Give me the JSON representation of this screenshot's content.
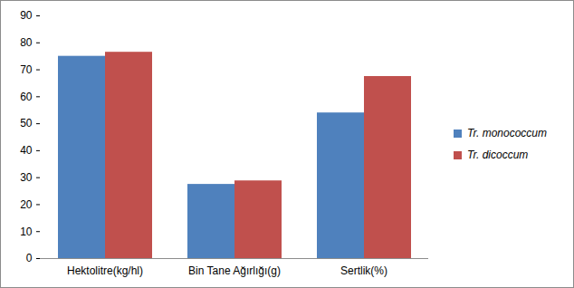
{
  "chart_data": {
    "type": "bar",
    "categories": [
      "Hektolitre(kg/hl)",
      "Bin Tane Ağırlığı(g)",
      "Sertlik(%)"
    ],
    "series": [
      {
        "name": "Tr. monococcum",
        "color": "#4f81bd",
        "values": [
          75,
          27.5,
          54
        ]
      },
      {
        "name": "Tr. dicoccum",
        "color": "#c0504d",
        "values": [
          76.5,
          28.8,
          67.5
        ]
      }
    ],
    "ylim": [
      0,
      90
    ],
    "yticks": [
      0,
      10,
      20,
      30,
      40,
      50,
      60,
      70,
      80,
      90
    ],
    "grid": false,
    "legend": "right"
  }
}
